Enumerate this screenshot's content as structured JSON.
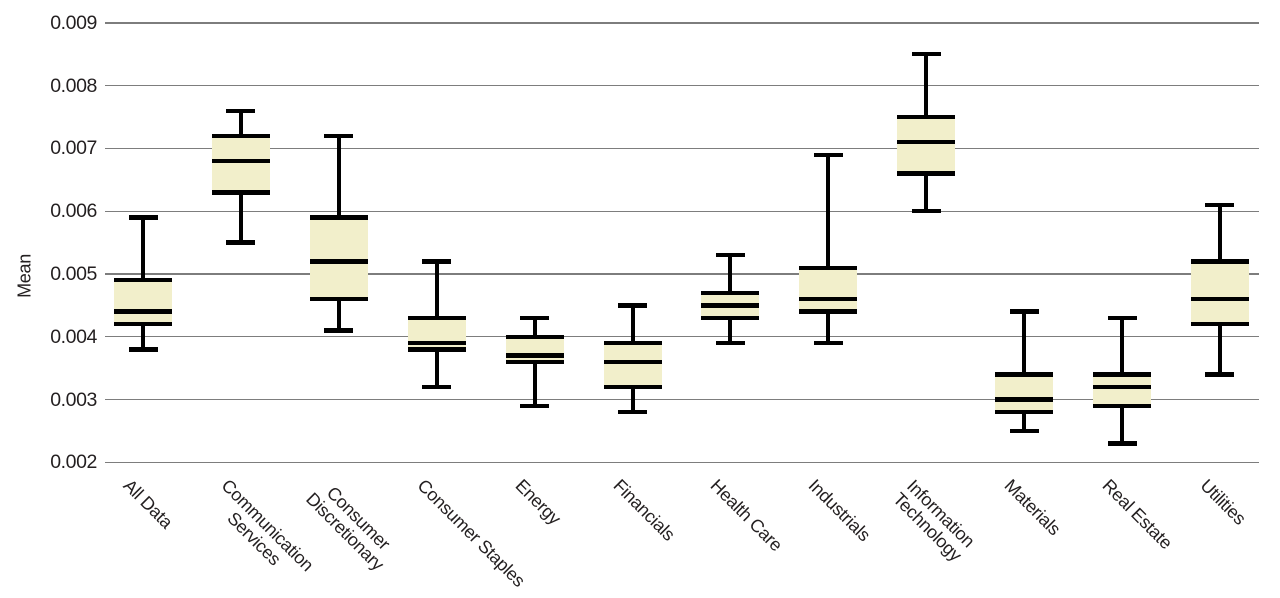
{
  "chart_data": {
    "type": "boxplot",
    "title": "",
    "ylabel": "Mean",
    "xlabel": "",
    "ylim": [
      0.002,
      0.009
    ],
    "ytick_labels": [
      "0.009",
      "0.008",
      "0.007",
      "0.006",
      "0.005",
      "0.004",
      "0.003",
      "0.002"
    ],
    "grid": "horizontal-only",
    "legend": "none",
    "categories": [
      "All Data",
      "Communication\nServices",
      "Consumer\nDiscretionary",
      "Consumer Staples",
      "Energy",
      "Financials",
      "Health Care",
      "Industrials",
      "Information\nTechnology",
      "Materials",
      "Real Estate",
      "Utilities"
    ],
    "series": [
      {
        "name": "All Data",
        "whisker_low": 0.0038,
        "q1": 0.0042,
        "median": 0.0044,
        "q3": 0.0049,
        "whisker_high": 0.0059
      },
      {
        "name": "Communication Services",
        "whisker_low": 0.0055,
        "q1": 0.0063,
        "median": 0.0068,
        "q3": 0.0072,
        "whisker_high": 0.0076
      },
      {
        "name": "Consumer Discretionary",
        "whisker_low": 0.0041,
        "q1": 0.0046,
        "median": 0.0052,
        "q3": 0.0059,
        "whisker_high": 0.0072
      },
      {
        "name": "Consumer Staples",
        "whisker_low": 0.0032,
        "q1": 0.0038,
        "median": 0.0039,
        "q3": 0.0043,
        "whisker_high": 0.0052
      },
      {
        "name": "Energy",
        "whisker_low": 0.0029,
        "q1": 0.0036,
        "median": 0.0037,
        "q3": 0.004,
        "whisker_high": 0.0043
      },
      {
        "name": "Financials",
        "whisker_low": 0.0028,
        "q1": 0.0032,
        "median": 0.0036,
        "q3": 0.0039,
        "whisker_high": 0.0045
      },
      {
        "name": "Health Care",
        "whisker_low": 0.0039,
        "q1": 0.0043,
        "median": 0.0045,
        "q3": 0.0047,
        "whisker_high": 0.0053
      },
      {
        "name": "Industrials",
        "whisker_low": 0.0039,
        "q1": 0.0044,
        "median": 0.0046,
        "q3": 0.0051,
        "whisker_high": 0.0069
      },
      {
        "name": "Information Technology",
        "whisker_low": 0.006,
        "q1": 0.0066,
        "median": 0.0071,
        "q3": 0.0075,
        "whisker_high": 0.0085
      },
      {
        "name": "Materials",
        "whisker_low": 0.0025,
        "q1": 0.0028,
        "median": 0.003,
        "q3": 0.0034,
        "whisker_high": 0.0044
      },
      {
        "name": "Real Estate",
        "whisker_low": 0.0023,
        "q1": 0.0029,
        "median": 0.0032,
        "q3": 0.0034,
        "whisker_high": 0.0043
      },
      {
        "name": "Utilities",
        "whisker_low": 0.0034,
        "q1": 0.0042,
        "median": 0.0046,
        "q3": 0.0052,
        "whisker_high": 0.0061
      }
    ],
    "colors": {
      "box_fill": "#f2efcb",
      "box_line": "#000000",
      "grid_line": "#7d7d7d",
      "text": "#231f20"
    }
  }
}
